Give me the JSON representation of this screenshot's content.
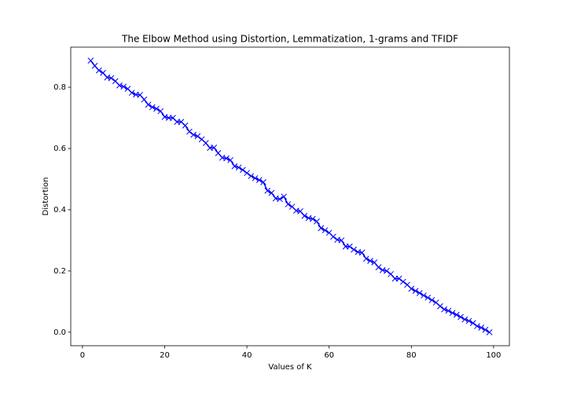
{
  "chart_data": {
    "type": "line",
    "title": "The Elbow Method using Distortion, Lemmatization, 1-grams and TFIDF",
    "x_label": "Values of K",
    "y_label": "Distortion",
    "x": [
      2,
      3,
      4,
      5,
      6,
      7,
      8,
      9,
      10,
      11,
      12,
      13,
      14,
      15,
      16,
      17,
      18,
      19,
      20,
      21,
      22,
      23,
      24,
      25,
      26,
      27,
      28,
      29,
      30,
      31,
      32,
      33,
      34,
      35,
      36,
      37,
      38,
      39,
      40,
      41,
      42,
      43,
      44,
      45,
      46,
      47,
      48,
      49,
      50,
      51,
      52,
      53,
      54,
      55,
      56,
      57,
      58,
      59,
      60,
      61,
      62,
      63,
      64,
      65,
      66,
      67,
      68,
      69,
      70,
      71,
      72,
      73,
      74,
      75,
      76,
      77,
      78,
      79,
      80,
      81,
      82,
      83,
      84,
      85,
      86,
      87,
      88,
      89,
      90,
      91,
      92,
      93,
      94,
      95,
      96,
      97,
      98,
      99
    ],
    "series": [
      {
        "color": "#0000ff",
        "marker": "x",
        "values": [
          0.887,
          0.87,
          0.855,
          0.847,
          0.832,
          0.83,
          0.82,
          0.806,
          0.802,
          0.795,
          0.782,
          0.776,
          0.775,
          0.76,
          0.743,
          0.735,
          0.73,
          0.722,
          0.703,
          0.7,
          0.7,
          0.687,
          0.687,
          0.675,
          0.655,
          0.645,
          0.64,
          0.63,
          0.618,
          0.602,
          0.603,
          0.585,
          0.57,
          0.568,
          0.562,
          0.542,
          0.538,
          0.53,
          0.52,
          0.51,
          0.503,
          0.497,
          0.49,
          0.462,
          0.455,
          0.437,
          0.435,
          0.443,
          0.418,
          0.41,
          0.397,
          0.395,
          0.38,
          0.373,
          0.37,
          0.362,
          0.34,
          0.333,
          0.325,
          0.312,
          0.302,
          0.3,
          0.28,
          0.28,
          0.27,
          0.262,
          0.26,
          0.24,
          0.233,
          0.228,
          0.212,
          0.203,
          0.2,
          0.19,
          0.175,
          0.175,
          0.165,
          0.155,
          0.142,
          0.135,
          0.128,
          0.12,
          0.113,
          0.105,
          0.097,
          0.085,
          0.075,
          0.07,
          0.063,
          0.057,
          0.05,
          0.042,
          0.037,
          0.03,
          0.02,
          0.015,
          0.008,
          0.0
        ]
      }
    ],
    "xlim": [
      -2.85,
      103.85
    ],
    "ylim": [
      -0.044,
      0.931
    ],
    "xticks": [
      0,
      20,
      40,
      60,
      80,
      100
    ],
    "yticks": [
      {
        "value": 0,
        "label": "0.0"
      },
      {
        "value": 0.2,
        "label": "0.2"
      },
      {
        "value": 0.4,
        "label": "0.4"
      },
      {
        "value": 0.6,
        "label": "0.6"
      },
      {
        "value": 0.8,
        "label": "0.8"
      }
    ]
  }
}
